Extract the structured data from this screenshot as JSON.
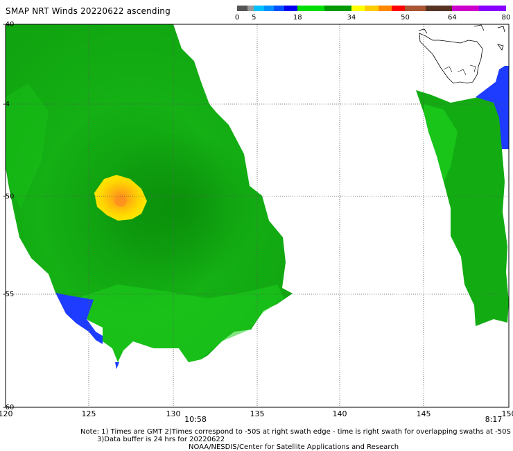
{
  "title": "SMAP NRT Winds 20220622 ascending",
  "colorbar": {
    "ticks": [
      "0",
      "5",
      "18",
      "34",
      "50",
      "64",
      "80"
    ],
    "segments": [
      {
        "from": 0,
        "to": 3,
        "color": "#555555"
      },
      {
        "from": 3,
        "to": 5,
        "color": "#999999"
      },
      {
        "from": 5,
        "to": 8,
        "color": "#00c0ff"
      },
      {
        "from": 8,
        "to": 11,
        "color": "#0090ff"
      },
      {
        "from": 11,
        "to": 14,
        "color": "#0050ff"
      },
      {
        "from": 14,
        "to": 18,
        "color": "#0000ee"
      },
      {
        "from": 18,
        "to": 26,
        "color": "#00dd00"
      },
      {
        "from": 26,
        "to": 34,
        "color": "#009900"
      },
      {
        "from": 34,
        "to": 38,
        "color": "#ffff00"
      },
      {
        "from": 38,
        "to": 42,
        "color": "#ffcc00"
      },
      {
        "from": 42,
        "to": 46,
        "color": "#ff8800"
      },
      {
        "from": 46,
        "to": 50,
        "color": "#ff0000"
      },
      {
        "from": 50,
        "to": 56,
        "color": "#aa5533"
      },
      {
        "from": 56,
        "to": 64,
        "color": "#553322"
      },
      {
        "from": 64,
        "to": 72,
        "color": "#cc00cc"
      },
      {
        "from": 72,
        "to": 80,
        "color": "#8800ff"
      }
    ]
  },
  "map": {
    "lat_labels": [
      "-40",
      "-4",
      "-50",
      "-55",
      "-60"
    ],
    "lon_labels": [
      "120",
      "125",
      "130",
      "135",
      "140",
      "145",
      "150"
    ],
    "swath_times": [
      "10:58",
      "8:17"
    ],
    "wind_colors": {
      "green_dark": "#0aa00a",
      "green_mid": "#12b812",
      "green_light": "#1ee61e",
      "yellow": "#ffe200",
      "orange": "#ffaa10",
      "blue": "#1e3cff",
      "land_outline": "#000000",
      "grid": "#555555"
    },
    "landmass": "Tasmania"
  },
  "notes": {
    "line1": "Note: 1) Times are GMT 2)Times correspond to -50S at right swath edge - time is right swath for overlapping swaths at -50S",
    "line2": "3)Data buffer is 24 hrs for 20220622",
    "line3": "NOAA/NESDIS/Center for Satellite Applications and Research"
  }
}
